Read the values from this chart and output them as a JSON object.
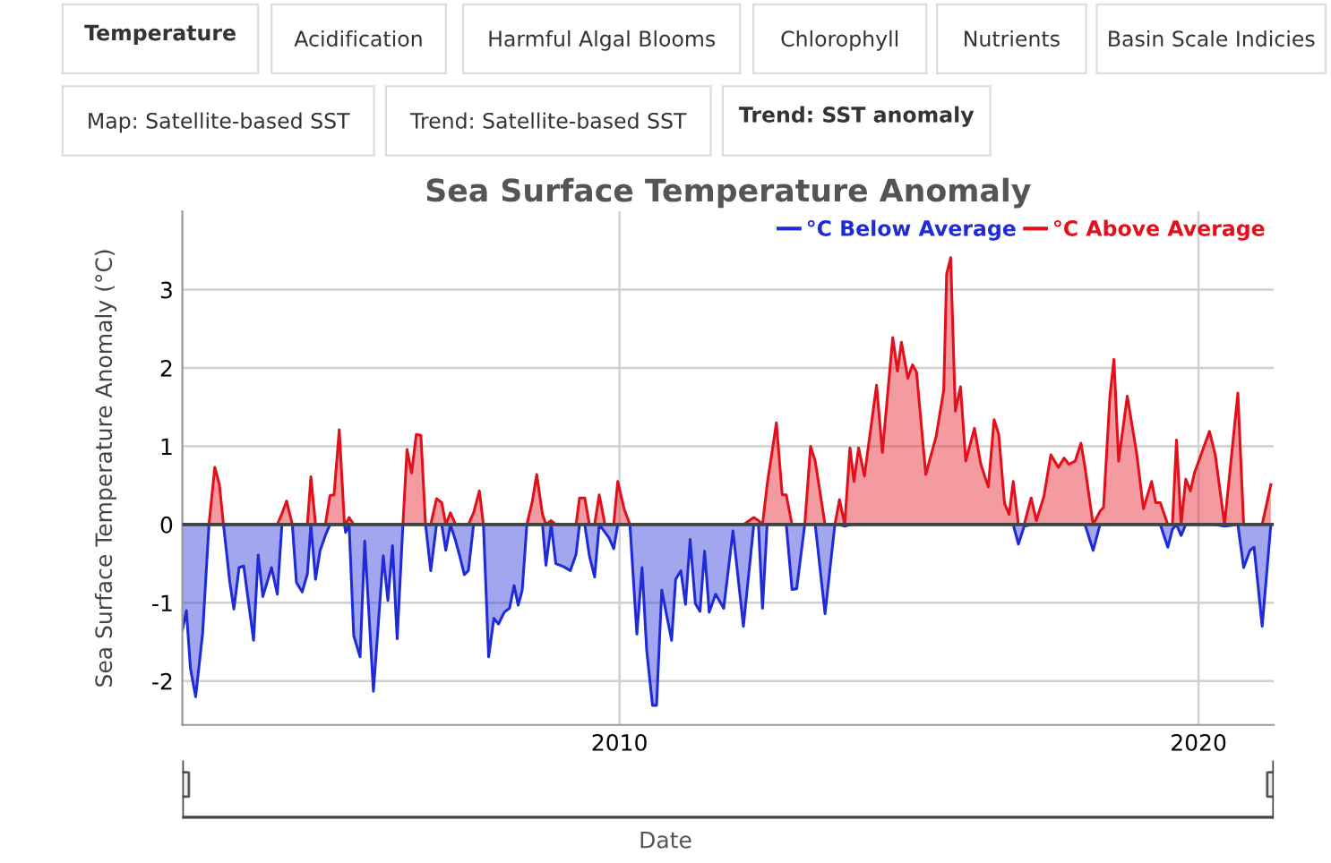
{
  "chart_data": {
    "type": "area",
    "title": "Sea Surface Temperature Anomaly",
    "xlabel": "Date",
    "ylabel": "Sea Surface Temperature Anomaly (°C)",
    "annotations": [
      "Temperature",
      "Acidification",
      "Harmful Algal Blooms",
      "Chlorophyll",
      "Nutrients",
      "Basin Scale Indicies",
      "Map: Satellite-based SST",
      "Trend: Satellite-based SST",
      "Trend: SST anomaly"
    ],
    "x": [
      2002.45,
      2002.52,
      2002.59,
      2002.68,
      2002.8,
      2002.91,
      2003.01,
      2003.09,
      2003.16,
      2003.27,
      2003.34,
      2003.43,
      2003.51,
      2003.68,
      2003.76,
      2003.84,
      2003.99,
      2004.09,
      2004.17,
      2004.25,
      2004.35,
      2004.42,
      2004.52,
      2004.61,
      2004.67,
      2004.75,
      2004.83,
      2004.92,
      2005.0,
      2005.07,
      2005.16,
      2005.25,
      2005.27,
      2005.33,
      2005.41,
      2005.52,
      2005.6,
      2005.75,
      2005.92,
      2006.0,
      2006.08,
      2006.16,
      2006.26,
      2006.33,
      2006.41,
      2006.49,
      2006.57,
      2006.65,
      2006.74,
      2006.84,
      2006.93,
      2007.0,
      2007.08,
      2007.17,
      2007.24,
      2007.32,
      2007.39,
      2007.48,
      2007.58,
      2007.65,
      2007.74,
      2007.83,
      2007.91,
      2008.01,
      2008.1,
      2008.18,
      2008.25,
      2008.32,
      2008.4,
      2008.49,
      2008.57,
      2008.67,
      2008.73,
      2008.82,
      2008.9,
      2009.04,
      2009.15,
      2009.25,
      2009.31,
      2009.4,
      2009.48,
      2009.57,
      2009.65,
      2009.75,
      2009.82,
      2009.9,
      2009.97,
      2010.08,
      2010.18,
      2010.3,
      2010.39,
      2010.47,
      2010.57,
      2010.64,
      2010.73,
      2010.9,
      2010.97,
      2011.06,
      2011.14,
      2011.22,
      2011.31,
      2011.39,
      2011.47,
      2011.55,
      2011.66,
      2011.8,
      2011.96,
      2012.14,
      2012.32,
      2012.4,
      2012.47,
      2012.55,
      2012.71,
      2012.81,
      2012.88,
      2012.98,
      2013.06,
      2013.2,
      2013.3,
      2013.38,
      2013.55,
      2013.72,
      2013.8,
      2013.89,
      2013.98,
      2014.05,
      2014.13,
      2014.23,
      2014.44,
      2014.54,
      2014.72,
      2014.8,
      2014.87,
      2014.98,
      2015.06,
      2015.13,
      2015.29,
      2015.47,
      2015.6,
      2015.65,
      2015.72,
      2015.8,
      2015.89,
      2015.98,
      2016.13,
      2016.24,
      2016.37,
      2016.47,
      2016.55,
      2016.65,
      2016.73,
      2016.8,
      2016.89,
      2016.99,
      2017.11,
      2017.2,
      2017.33,
      2017.45,
      2017.58,
      2017.68,
      2017.76,
      2017.87,
      2017.97,
      2018.04,
      2018.18,
      2018.3,
      2018.36,
      2018.47,
      2018.54,
      2018.62,
      2018.77,
      2018.93,
      2019.05,
      2019.19,
      2019.26,
      2019.34,
      2019.47,
      2019.55,
      2019.62,
      2019.7,
      2019.78,
      2019.86,
      2019.93,
      2020.19,
      2020.29,
      2020.45,
      2020.68,
      2020.78,
      2020.89,
      2020.96,
      2021.1,
      2021.25
    ],
    "series": [
      {
        "name": "°C Below Average",
        "color": "#1f2bd6",
        "values": [
          -1.35,
          -1.1,
          -1.84,
          -2.2,
          -1.39,
          0,
          0,
          0,
          0,
          -0.74,
          -1.08,
          -0.55,
          -0.53,
          -1.48,
          -0.39,
          -0.92,
          -0.55,
          -0.89,
          0,
          0,
          0,
          -0.74,
          -0.86,
          -0.63,
          0,
          -0.7,
          -0.33,
          -0.14,
          0,
          0,
          0,
          0,
          -0.1,
          0,
          -1.42,
          -1.69,
          -0.21,
          -2.13,
          -0.4,
          -0.97,
          -0.27,
          -1.46,
          0,
          0,
          0,
          0,
          0,
          0,
          -0.59,
          0,
          0,
          -0.33,
          0,
          -0.21,
          -0.4,
          -0.64,
          -0.59,
          0,
          0,
          0,
          -1.69,
          -1.2,
          -1.27,
          -1.12,
          -1.07,
          -0.78,
          -1.03,
          -0.84,
          0,
          0,
          0,
          0,
          -0.52,
          0,
          -0.5,
          -0.54,
          -0.59,
          -0.38,
          0,
          0,
          -0.4,
          -0.67,
          0,
          -0.1,
          -0.17,
          -0.31,
          0,
          0,
          0,
          -1.4,
          -0.55,
          -1.61,
          -2.31,
          -2.31,
          -0.84,
          -1.48,
          -0.7,
          -0.59,
          -1.02,
          -0.19,
          -1.01,
          -1.11,
          -0.34,
          -1.12,
          -0.89,
          -1.07,
          -0.08,
          -1.3,
          0,
          0,
          -1.07,
          0,
          0,
          0,
          0,
          -0.83,
          -0.82,
          0,
          0,
          0,
          -1.14,
          0,
          0,
          -0.02,
          0,
          0,
          0,
          0,
          0,
          0,
          0,
          0,
          0,
          0,
          0,
          0,
          0,
          0,
          0,
          0,
          0,
          0,
          0,
          0,
          0,
          0,
          0,
          0,
          0,
          0,
          0,
          0,
          -0.25,
          -0.02,
          0,
          0,
          0,
          0,
          0,
          0,
          0,
          0,
          0,
          0,
          -0.33,
          0,
          0,
          0,
          0,
          0,
          0,
          0,
          0,
          0,
          0,
          0,
          -0.29,
          -0.06,
          0,
          -0.14,
          0,
          0,
          0,
          0,
          0,
          -0.02,
          0,
          -0.55,
          -0.33,
          -0.29,
          -1.3,
          0
        ]
      },
      {
        "name": "°C Above Average",
        "color": "#e3101c",
        "values": [
          0,
          0,
          0,
          0,
          0,
          0,
          0.73,
          0.51,
          0,
          0,
          0,
          0,
          0,
          0,
          0,
          0,
          0,
          0,
          0.14,
          0.3,
          0,
          0,
          0,
          0,
          0.61,
          0,
          0,
          0,
          0.37,
          0.38,
          1.21,
          0,
          0,
          0.09,
          0,
          0,
          0,
          0,
          0,
          0,
          0,
          0,
          0,
          0.96,
          0.66,
          1.15,
          1.14,
          0,
          0,
          0.33,
          0.28,
          0,
          0.15,
          0,
          0,
          0,
          0,
          0.15,
          0.43,
          0,
          0,
          0,
          0,
          0,
          0,
          0,
          0,
          0,
          0,
          0.28,
          0.64,
          0.13,
          0,
          0.05,
          0,
          0,
          0,
          0,
          0.34,
          0.34,
          0,
          0,
          0.38,
          0,
          0,
          0,
          0.55,
          0.2,
          0,
          0,
          0,
          0,
          0,
          0,
          0,
          0,
          0,
          0,
          0,
          0,
          0,
          0,
          0,
          0,
          0,
          0,
          0,
          0,
          0.09,
          0.05,
          0,
          0.51,
          1.3,
          0.38,
          0.38,
          0,
          0,
          0,
          1.0,
          0.81,
          0,
          0,
          0.32,
          0,
          0.98,
          0.55,
          0.98,
          0.62,
          1.78,
          0.92,
          2.39,
          1.96,
          2.33,
          1.87,
          2.04,
          1.95,
          0.64,
          1.13,
          1.72,
          3.2,
          3.41,
          1.45,
          1.76,
          0.81,
          1.23,
          0.77,
          0.48,
          1.34,
          1.15,
          0.27,
          0.13,
          0.55,
          0,
          0,
          0.34,
          0.05,
          0.36,
          0.89,
          0.73,
          0.85,
          0.77,
          0.81,
          1.04,
          0.73,
          0,
          0.17,
          0.22,
          1.64,
          2.11,
          0.81,
          1.64,
          0.92,
          0.2,
          0.55,
          0.28,
          0.28,
          0,
          0,
          1.08,
          0,
          0.58,
          0.43,
          0.66,
          1.19,
          0.89,
          0,
          1.68,
          0,
          0,
          0,
          0,
          0.51
        ]
      }
    ],
    "xlim": [
      2002.45,
      2021.3
    ],
    "xticks": [
      2010,
      2020
    ],
    "ylim": [
      -2.56,
      4.0
    ],
    "yticks": [
      -2,
      -1,
      0,
      1,
      2,
      3
    ],
    "ref_lines": [
      {
        "axis": "y",
        "value": 0,
        "color": "#444444"
      }
    ],
    "grid": true,
    "legend": "top right"
  }
}
